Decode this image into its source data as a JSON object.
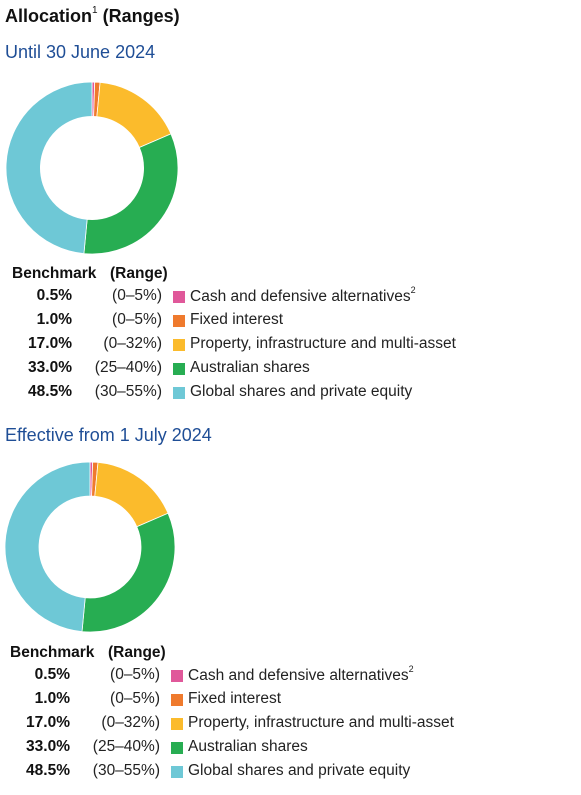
{
  "title": {
    "text": "Allocation",
    "footnote": "1",
    "suffix": " (Ranges)"
  },
  "legend_headers": {
    "benchmark": "Benchmark",
    "range": "(Range)"
  },
  "colors": {
    "cash": "#e0589a",
    "fixed": "#ef7a2d",
    "property": "#fbbb2c",
    "australian": "#27ad52",
    "global": "#6ec8d6"
  },
  "chart_data": [
    {
      "type": "pie",
      "title": "Until 30 June 2024",
      "categories": [
        "Cash and defensive alternatives",
        "Fixed interest",
        "Property, infrastructure and multi-asset",
        "Australian shares",
        "Global shares and private equity"
      ],
      "values": [
        0.5,
        1.0,
        17.0,
        33.0,
        48.5
      ],
      "value_labels": [
        "0.5%",
        "1.0%",
        "17.0%",
        "33.0%",
        "48.5%"
      ],
      "ranges": [
        "(0–5%)",
        "(0–5%)",
        "(0–32%)",
        "(25–40%)",
        "(30–55%)"
      ],
      "footnotes": [
        "2",
        "",
        "",
        "",
        ""
      ],
      "color_keys": [
        "cash",
        "fixed",
        "property",
        "australian",
        "global"
      ]
    },
    {
      "type": "pie",
      "title": "Effective from 1 July 2024",
      "categories": [
        "Cash and defensive alternatives",
        "Fixed interest",
        "Property, infrastructure and multi-asset",
        "Australian shares",
        "Global shares and private equity"
      ],
      "values": [
        0.5,
        1.0,
        17.0,
        33.0,
        48.5
      ],
      "value_labels": [
        "0.5%",
        "1.0%",
        "17.0%",
        "33.0%",
        "48.5%"
      ],
      "ranges": [
        "(0–5%)",
        "(0–5%)",
        "(0–32%)",
        "(25–40%)",
        "(30–55%)"
      ],
      "footnotes": [
        "2",
        "",
        "",
        "",
        ""
      ],
      "color_keys": [
        "cash",
        "fixed",
        "property",
        "australian",
        "global"
      ]
    }
  ]
}
